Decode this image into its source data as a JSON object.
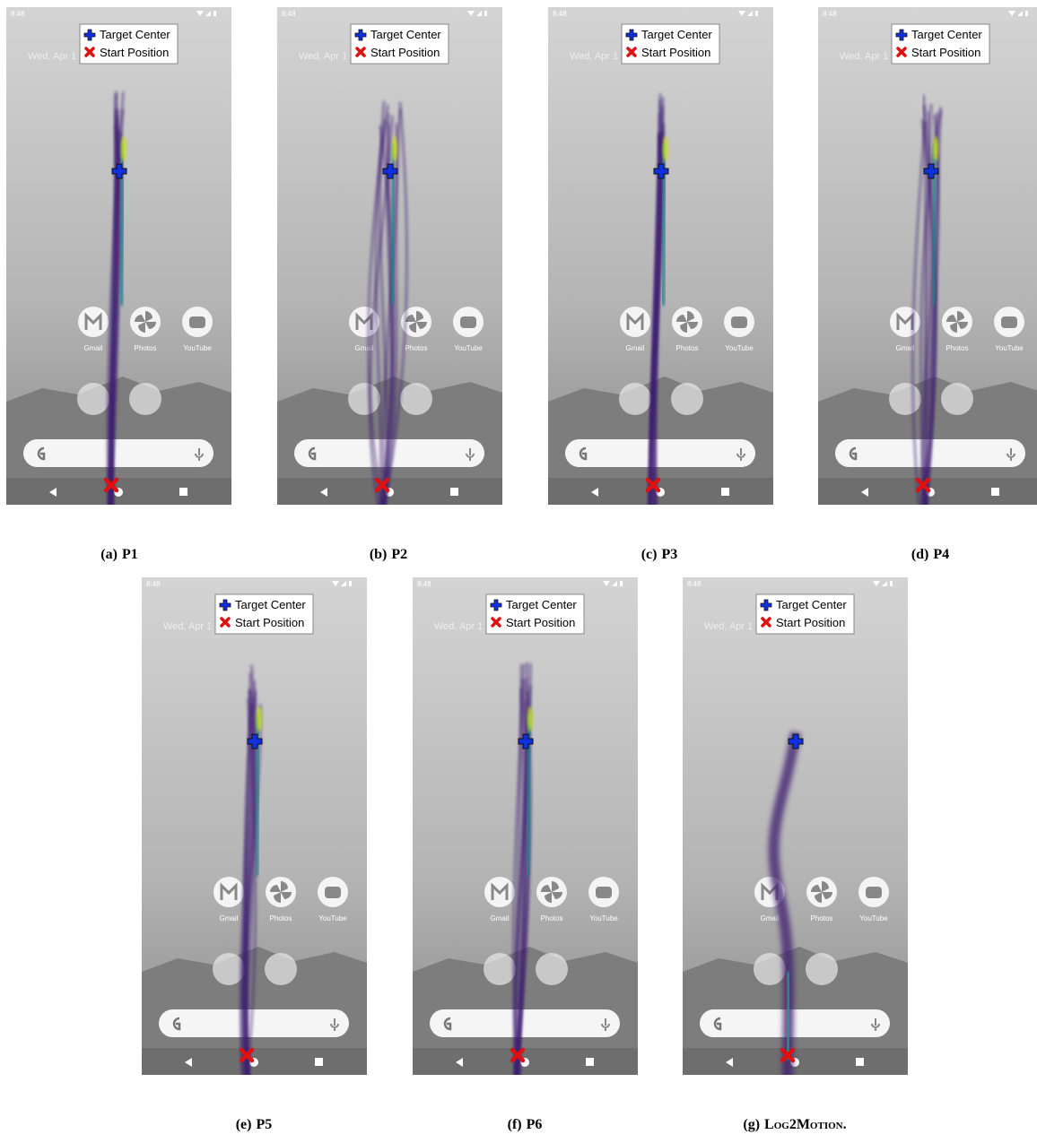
{
  "phone": {
    "time": "8:48",
    "date": "Wed, Apr 1",
    "legend": [
      "Target Center",
      "Start Position"
    ],
    "apps": [
      "Gmail",
      "Photos",
      "YouTube"
    ]
  },
  "panels": [
    {
      "label": "(a)",
      "name": "P1"
    },
    {
      "label": "(b)",
      "name": "P2"
    },
    {
      "label": "(c)",
      "name": "P3"
    },
    {
      "label": "(d)",
      "name": "P4"
    },
    {
      "label": "(e)",
      "name": "P5"
    },
    {
      "label": "(f)",
      "name": "P6"
    },
    {
      "label": "(g)",
      "name": "Log2Motion."
    }
  ]
}
